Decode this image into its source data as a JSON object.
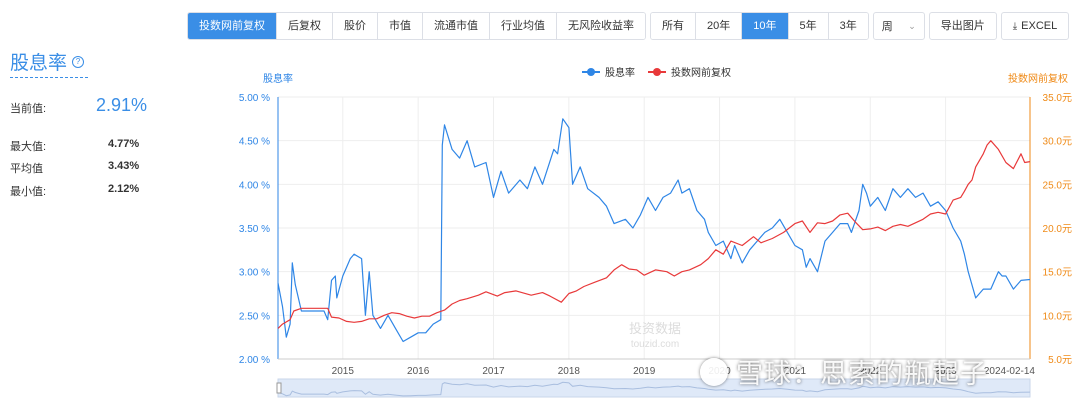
{
  "toolbar": {
    "group1": [
      {
        "label": "投数网前复权",
        "active": true
      },
      {
        "label": "后复权",
        "active": false
      },
      {
        "label": "股价",
        "active": false
      },
      {
        "label": "市值",
        "active": false
      },
      {
        "label": "流通市值",
        "active": false
      },
      {
        "label": "行业均值",
        "active": false
      },
      {
        "label": "无风险收益率",
        "active": false
      }
    ],
    "group2": [
      {
        "label": "所有",
        "active": false
      },
      {
        "label": "20年",
        "active": false
      },
      {
        "label": "10年",
        "active": true
      },
      {
        "label": "5年",
        "active": false
      },
      {
        "label": "3年",
        "active": false
      }
    ],
    "period_select": "周",
    "export_image": "导出图片",
    "export_excel": "EXCEL"
  },
  "metric": {
    "title": "股息率",
    "help": "?",
    "current_label": "当前值:",
    "current_value": "2.91%",
    "max_label": "最大值:",
    "max_value": "4.77%",
    "avg_label": "平均值",
    "avg_value": "3.43%",
    "min_label": "最小值:",
    "min_value": "2.12%"
  },
  "watermark_text": "雪球：思索的瓶起子",
  "chart_watermark": "投资数据\ntouzid.com",
  "chart_data": {
    "type": "line",
    "left_axis_title": "股息率",
    "right_axis_title": "投数网前复权",
    "left_ticks": [
      "5.00 %",
      "4.50 %",
      "4.00 %",
      "3.50 %",
      "3.00 %",
      "2.50 %",
      "2.00 %"
    ],
    "right_ticks": [
      "35.0元",
      "30.0元",
      "25.0元",
      "20.0元",
      "15.0元",
      "10.0元",
      "5.0元"
    ],
    "ylim_left": [
      2.0,
      5.0
    ],
    "ylim_right": [
      5.0,
      35.0
    ],
    "x_ticks": [
      "2015",
      "2016",
      "2017",
      "2018",
      "2019",
      "2020",
      "2021",
      "2022",
      "2023"
    ],
    "x_end_label": "2024-02-14",
    "xlim": [
      2014.14,
      2024.12
    ],
    "legend_position": "top-center",
    "series": [
      {
        "name": "股息率",
        "axis": "left",
        "color": "#2f86e6",
        "points": [
          [
            2014.14,
            2.87
          ],
          [
            2014.2,
            2.6
          ],
          [
            2014.25,
            2.25
          ],
          [
            2014.3,
            2.4
          ],
          [
            2014.33,
            3.1
          ],
          [
            2014.37,
            2.85
          ],
          [
            2014.45,
            2.55
          ],
          [
            2014.6,
            2.55
          ],
          [
            2014.75,
            2.55
          ],
          [
            2014.8,
            2.45
          ],
          [
            2014.85,
            2.9
          ],
          [
            2014.9,
            2.95
          ],
          [
            2014.92,
            2.7
          ],
          [
            2015.0,
            2.95
          ],
          [
            2015.1,
            3.15
          ],
          [
            2015.15,
            3.2
          ],
          [
            2015.25,
            3.15
          ],
          [
            2015.3,
            2.5
          ],
          [
            2015.35,
            3.0
          ],
          [
            2015.4,
            2.5
          ],
          [
            2015.5,
            2.35
          ],
          [
            2015.6,
            2.5
          ],
          [
            2015.7,
            2.35
          ],
          [
            2015.8,
            2.2
          ],
          [
            2015.9,
            2.25
          ],
          [
            2016.0,
            2.3
          ],
          [
            2016.1,
            2.3
          ],
          [
            2016.2,
            2.4
          ],
          [
            2016.3,
            2.45
          ],
          [
            2016.32,
            4.45
          ],
          [
            2016.35,
            4.68
          ],
          [
            2016.45,
            4.4
          ],
          [
            2016.55,
            4.3
          ],
          [
            2016.65,
            4.5
          ],
          [
            2016.75,
            4.2
          ],
          [
            2016.9,
            4.25
          ],
          [
            2017.0,
            3.85
          ],
          [
            2017.1,
            4.15
          ],
          [
            2017.2,
            3.9
          ],
          [
            2017.35,
            4.05
          ],
          [
            2017.45,
            3.95
          ],
          [
            2017.55,
            4.2
          ],
          [
            2017.65,
            4.0
          ],
          [
            2017.8,
            4.4
          ],
          [
            2017.85,
            4.35
          ],
          [
            2017.92,
            4.75
          ],
          [
            2018.0,
            4.65
          ],
          [
            2018.05,
            4.0
          ],
          [
            2018.15,
            4.2
          ],
          [
            2018.25,
            3.95
          ],
          [
            2018.4,
            3.85
          ],
          [
            2018.5,
            3.75
          ],
          [
            2018.6,
            3.55
          ],
          [
            2018.75,
            3.6
          ],
          [
            2018.85,
            3.5
          ],
          [
            2018.95,
            3.65
          ],
          [
            2019.05,
            3.85
          ],
          [
            2019.15,
            3.7
          ],
          [
            2019.25,
            3.85
          ],
          [
            2019.35,
            3.9
          ],
          [
            2019.45,
            4.05
          ],
          [
            2019.5,
            3.9
          ],
          [
            2019.6,
            3.95
          ],
          [
            2019.7,
            3.7
          ],
          [
            2019.8,
            3.6
          ],
          [
            2019.85,
            3.45
          ],
          [
            2019.95,
            3.3
          ],
          [
            2020.05,
            3.35
          ],
          [
            2020.15,
            3.15
          ],
          [
            2020.2,
            3.3
          ],
          [
            2020.3,
            3.1
          ],
          [
            2020.4,
            3.25
          ],
          [
            2020.5,
            3.35
          ],
          [
            2020.6,
            3.45
          ],
          [
            2020.7,
            3.5
          ],
          [
            2020.8,
            3.6
          ],
          [
            2020.9,
            3.45
          ],
          [
            2021.0,
            3.3
          ],
          [
            2021.1,
            3.25
          ],
          [
            2021.15,
            3.05
          ],
          [
            2021.2,
            3.15
          ],
          [
            2021.3,
            3.0
          ],
          [
            2021.4,
            3.35
          ],
          [
            2021.5,
            3.45
          ],
          [
            2021.6,
            3.55
          ],
          [
            2021.7,
            3.55
          ],
          [
            2021.75,
            3.45
          ],
          [
            2021.85,
            3.7
          ],
          [
            2021.9,
            4.0
          ],
          [
            2021.95,
            3.9
          ],
          [
            2022.0,
            3.75
          ],
          [
            2022.1,
            3.85
          ],
          [
            2022.2,
            3.7
          ],
          [
            2022.3,
            3.95
          ],
          [
            2022.4,
            3.85
          ],
          [
            2022.5,
            3.95
          ],
          [
            2022.6,
            3.85
          ],
          [
            2022.7,
            3.9
          ],
          [
            2022.8,
            3.75
          ],
          [
            2022.9,
            3.8
          ],
          [
            2023.0,
            3.7
          ],
          [
            2023.1,
            3.5
          ],
          [
            2023.2,
            3.35
          ],
          [
            2023.25,
            3.2
          ],
          [
            2023.3,
            3.0
          ],
          [
            2023.4,
            2.7
          ],
          [
            2023.5,
            2.8
          ],
          [
            2023.6,
            2.8
          ],
          [
            2023.7,
            3.0
          ],
          [
            2023.75,
            2.95
          ],
          [
            2023.8,
            2.95
          ],
          [
            2023.9,
            2.8
          ],
          [
            2024.0,
            2.9
          ],
          [
            2024.12,
            2.91
          ]
        ]
      },
      {
        "name": "投数网前复权",
        "axis": "right",
        "color": "#e8393a",
        "points": [
          [
            2014.14,
            8.5
          ],
          [
            2014.2,
            9.0
          ],
          [
            2014.3,
            9.5
          ],
          [
            2014.35,
            10.5
          ],
          [
            2014.45,
            10.8
          ],
          [
            2014.6,
            10.8
          ],
          [
            2014.75,
            10.8
          ],
          [
            2014.8,
            10.8
          ],
          [
            2014.85,
            9.8
          ],
          [
            2014.95,
            9.7
          ],
          [
            2015.05,
            9.3
          ],
          [
            2015.15,
            9.2
          ],
          [
            2015.25,
            9.3
          ],
          [
            2015.35,
            9.6
          ],
          [
            2015.45,
            9.6
          ],
          [
            2015.55,
            10.0
          ],
          [
            2015.65,
            10.3
          ],
          [
            2015.75,
            10.2
          ],
          [
            2015.85,
            9.9
          ],
          [
            2015.95,
            9.7
          ],
          [
            2016.05,
            9.9
          ],
          [
            2016.15,
            9.9
          ],
          [
            2016.25,
            10.3
          ],
          [
            2016.35,
            10.6
          ],
          [
            2016.45,
            11.3
          ],
          [
            2016.55,
            11.7
          ],
          [
            2016.65,
            11.9
          ],
          [
            2016.8,
            12.3
          ],
          [
            2016.9,
            12.7
          ],
          [
            2017.05,
            12.2
          ],
          [
            2017.15,
            12.6
          ],
          [
            2017.3,
            12.8
          ],
          [
            2017.5,
            12.3
          ],
          [
            2017.65,
            12.6
          ],
          [
            2017.75,
            12.2
          ],
          [
            2017.9,
            11.5
          ],
          [
            2018.0,
            12.5
          ],
          [
            2018.1,
            12.8
          ],
          [
            2018.2,
            13.3
          ],
          [
            2018.35,
            13.8
          ],
          [
            2018.5,
            14.3
          ],
          [
            2018.6,
            15.2
          ],
          [
            2018.7,
            15.8
          ],
          [
            2018.8,
            15.3
          ],
          [
            2018.9,
            15.2
          ],
          [
            2019.0,
            14.6
          ],
          [
            2019.15,
            15.2
          ],
          [
            2019.3,
            15.0
          ],
          [
            2019.4,
            14.5
          ],
          [
            2019.5,
            15.0
          ],
          [
            2019.6,
            15.2
          ],
          [
            2019.75,
            15.8
          ],
          [
            2019.85,
            16.5
          ],
          [
            2019.95,
            17.5
          ],
          [
            2020.05,
            17.0
          ],
          [
            2020.15,
            18.5
          ],
          [
            2020.3,
            18.0
          ],
          [
            2020.45,
            19.0
          ],
          [
            2020.55,
            18.3
          ],
          [
            2020.7,
            18.8
          ],
          [
            2020.85,
            19.5
          ],
          [
            2021.0,
            20.5
          ],
          [
            2021.1,
            20.8
          ],
          [
            2021.2,
            19.5
          ],
          [
            2021.3,
            20.6
          ],
          [
            2021.4,
            20.5
          ],
          [
            2021.5,
            20.8
          ],
          [
            2021.6,
            21.5
          ],
          [
            2021.7,
            21.7
          ],
          [
            2021.8,
            20.7
          ],
          [
            2021.9,
            19.8
          ],
          [
            2022.0,
            19.9
          ],
          [
            2022.1,
            20.1
          ],
          [
            2022.2,
            19.7
          ],
          [
            2022.3,
            20.2
          ],
          [
            2022.4,
            20.4
          ],
          [
            2022.5,
            20.2
          ],
          [
            2022.6,
            20.6
          ],
          [
            2022.7,
            21.0
          ],
          [
            2022.8,
            21.6
          ],
          [
            2022.9,
            21.8
          ],
          [
            2023.0,
            21.6
          ],
          [
            2023.1,
            23.2
          ],
          [
            2023.2,
            23.5
          ],
          [
            2023.25,
            24.2
          ],
          [
            2023.3,
            25.0
          ],
          [
            2023.35,
            25.5
          ],
          [
            2023.4,
            27.0
          ],
          [
            2023.5,
            28.5
          ],
          [
            2023.55,
            29.5
          ],
          [
            2023.6,
            30.0
          ],
          [
            2023.7,
            29.0
          ],
          [
            2023.8,
            27.5
          ],
          [
            2023.9,
            26.8
          ],
          [
            2024.0,
            28.5
          ],
          [
            2024.05,
            27.5
          ],
          [
            2024.12,
            27.6
          ]
        ]
      }
    ]
  }
}
